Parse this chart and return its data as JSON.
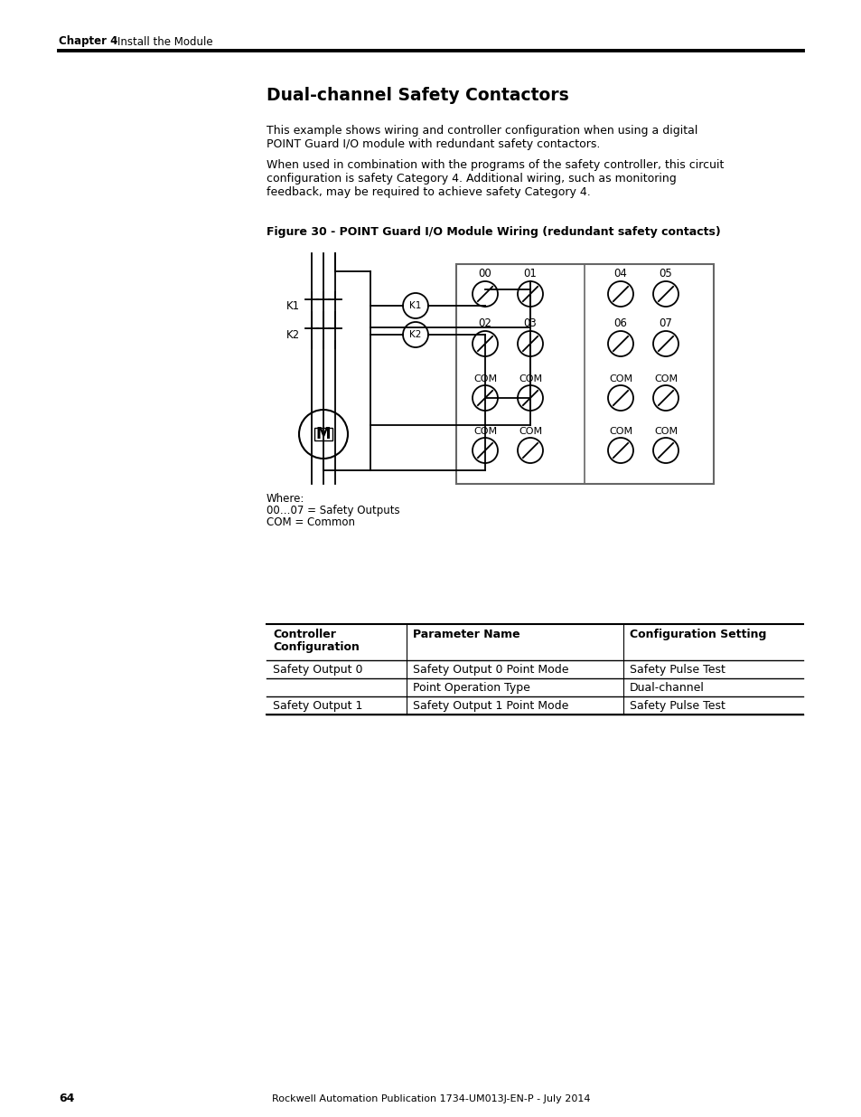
{
  "chapter_header_bold": "Chapter 4",
  "chapter_header_normal": "    Install the Module",
  "page_title": "Dual-channel Safety Contactors",
  "body_text_1": [
    "This example shows wiring and controller configuration when using a digital",
    "POINT Guard I/O module with redundant safety contactors."
  ],
  "body_text_2": [
    "When used in combination with the programs of the safety controller, this circuit",
    "configuration is safety Category 4. Additional wiring, such as monitoring",
    "feedback, may be required to achieve safety Category 4."
  ],
  "figure_caption": "Figure 30 - POINT Guard I/O Module Wiring (redundant safety contacts)",
  "where_lines": [
    "Where:",
    "00…07 = Safety Outputs",
    "COM = Common"
  ],
  "table_headers": [
    "Controller\nConfiguration",
    "Parameter Name",
    "Configuration Setting"
  ],
  "table_rows": [
    [
      "Safety Output 0",
      "Safety Output 0 Point Mode",
      "Safety Pulse Test"
    ],
    [
      "",
      "Point Operation Type",
      "Dual-channel"
    ],
    [
      "Safety Output 1",
      "Safety Output 1 Point Mode",
      "Safety Pulse Test"
    ]
  ],
  "footer_text": "Rockwell Automation Publication 1734-UM013J-EN-P - July 2014",
  "page_number": "64"
}
